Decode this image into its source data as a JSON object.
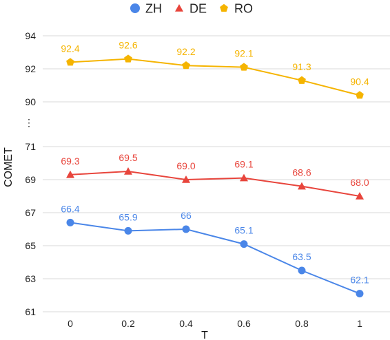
{
  "chart_data": {
    "type": "line",
    "x": [
      "0",
      "0.2",
      "0.4",
      "0.6",
      "0.8",
      "1"
    ],
    "xlabel": "T",
    "ylabel": "COMET",
    "y_ticks": [
      "61",
      "63",
      "65",
      "67",
      "69",
      "71",
      "90",
      "92",
      "94"
    ],
    "axis_break": "⋮",
    "grid": true,
    "legend_position": "top",
    "series": [
      {
        "name": "ZH",
        "color": "#4a86e8",
        "marker": "circle",
        "values": [
          66.4,
          65.9,
          66.0,
          65.1,
          63.5,
          62.1
        ],
        "labels": [
          "66.4",
          "65.9",
          "66",
          "65.1",
          "63.5",
          "62.1"
        ]
      },
      {
        "name": "DE",
        "color": "#e8453c",
        "marker": "triangle",
        "values": [
          69.3,
          69.5,
          69.0,
          69.1,
          68.6,
          68.0
        ],
        "labels": [
          "69.3",
          "69.5",
          "69.0",
          "69.1",
          "68.6",
          "68.0"
        ]
      },
      {
        "name": "RO",
        "color": "#f5b400",
        "marker": "pentagon",
        "values": [
          92.4,
          92.6,
          92.2,
          92.1,
          91.3,
          90.4
        ],
        "labels": [
          "92.4",
          "92.6",
          "92.2",
          "92.1",
          "91.3",
          "90.4"
        ]
      }
    ]
  }
}
